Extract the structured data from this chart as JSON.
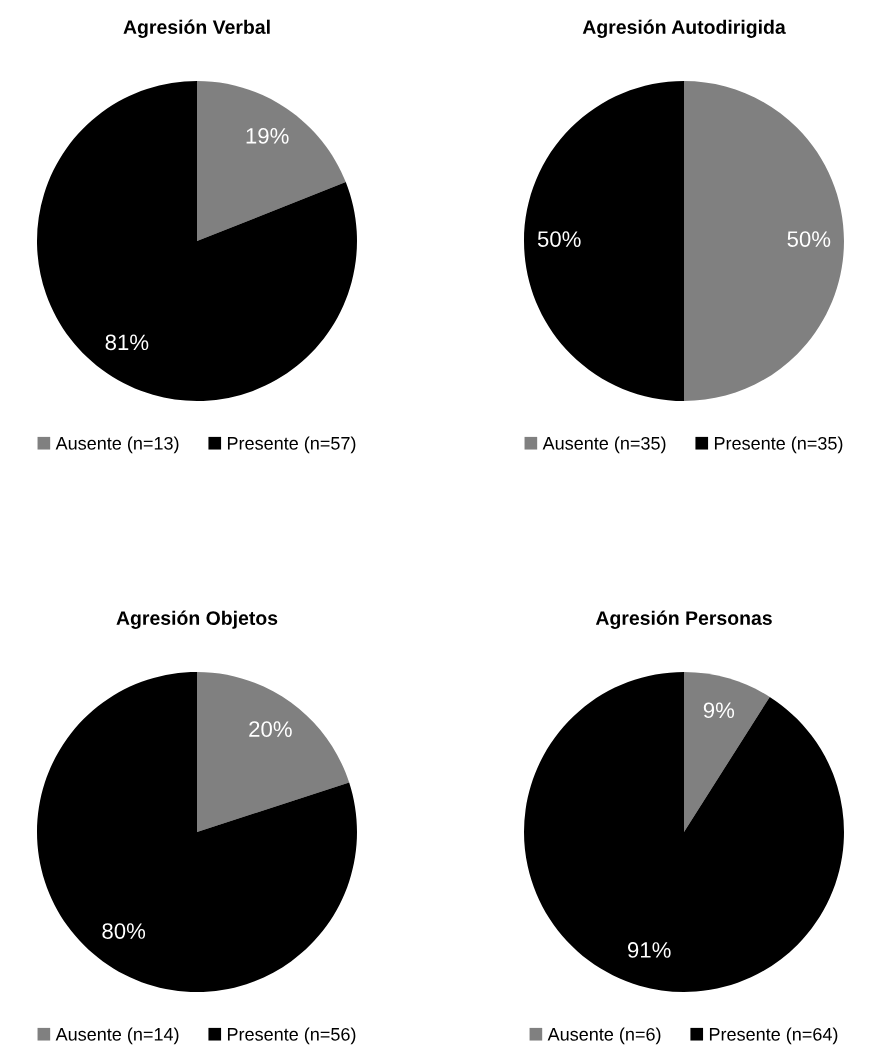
{
  "chart_data": [
    {
      "type": "pie",
      "title": "Agresión Verbal",
      "categories": [
        "Ausente (n=13)",
        "Presente (n=57)"
      ],
      "values": [
        19,
        81
      ],
      "colors": [
        "#808080",
        "#000000"
      ],
      "value_labels": [
        "19%",
        "81%"
      ],
      "legend": "bottom"
    },
    {
      "type": "pie",
      "title": "Agresión Autodirigida",
      "categories": [
        "Ausente (n=35)",
        "Presente (n=35)"
      ],
      "values": [
        50,
        50
      ],
      "colors": [
        "#808080",
        "#000000"
      ],
      "value_labels": [
        "50%",
        "50%"
      ],
      "legend": "bottom"
    },
    {
      "type": "pie",
      "title": "Agresión Objetos",
      "categories": [
        "Ausente (n=14)",
        "Presente (n=56)"
      ],
      "values": [
        20,
        80
      ],
      "colors": [
        "#808080",
        "#000000"
      ],
      "value_labels": [
        "20%",
        "80%"
      ],
      "legend": "bottom"
    },
    {
      "type": "pie",
      "title": "Agresión Personas",
      "categories": [
        "Ausente (n=6)",
        "Presente (n=64)"
      ],
      "values": [
        9,
        91
      ],
      "colors": [
        "#808080",
        "#000000"
      ],
      "value_labels": [
        "9%",
        "91%"
      ],
      "legend": "bottom"
    }
  ]
}
